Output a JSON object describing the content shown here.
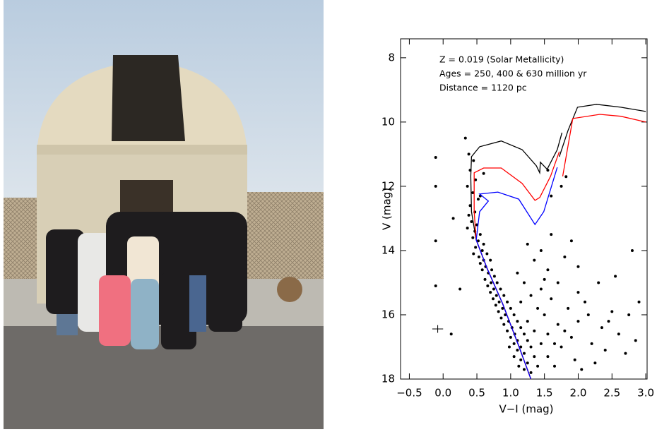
{
  "chart_data": {
    "type": "scatter",
    "annotations": [
      "Z = 0.019 (Solar Metallicity)",
      "Ages = 250, 400 & 630 million yr",
      "Distance = 1120 pc"
    ],
    "xlabel": "V−I (mag)",
    "ylabel": "V (mag)",
    "xlim": [
      -0.63,
      3.02
    ],
    "ylim": [
      18,
      7.41
    ],
    "xticks": [
      {
        "value": -0.5,
        "label": "−0.5"
      },
      {
        "value": 0,
        "label": "0.0"
      },
      0.5,
      {
        "value": 1,
        "label": "1.0"
      },
      1.5,
      {
        "value": 2,
        "label": "2.0"
      },
      2.5,
      {
        "value": 3,
        "label": "3.0"
      }
    ],
    "yticks": [
      8,
      10,
      12,
      14,
      16,
      18
    ],
    "series": [
      {
        "type": "scatter",
        "color": "#000000",
        "x": [
          0.33,
          0.38,
          0.45,
          0.4,
          0.48,
          0.36,
          0.44,
          0.52,
          0.4,
          0.47,
          0.38,
          0.55,
          0.6,
          0.42,
          0.5,
          0.36,
          0.47,
          0.55,
          0.44,
          0.52,
          0.6,
          0.48,
          0.58,
          0.45,
          0.65,
          0.53,
          0.6,
          0.7,
          0.55,
          0.63,
          0.72,
          0.58,
          0.67,
          0.76,
          0.62,
          0.71,
          0.8,
          0.66,
          0.75,
          0.85,
          0.7,
          0.79,
          0.9,
          0.74,
          0.83,
          0.95,
          0.78,
          0.88,
          1.0,
          0.82,
          0.92,
          1.05,
          0.86,
          0.97,
          1.1,
          0.9,
          1.02,
          1.15,
          0.95,
          1.06,
          1.2,
          1.0,
          1.1,
          1.25,
          1.05,
          1.15,
          1.3,
          1.1,
          1.2,
          1.35,
          1.15,
          1.25,
          1.4,
          1.2,
          1.3,
          1.5,
          1.6,
          1.45,
          1.7,
          1.85,
          2.0,
          2.1,
          1.9,
          2.2,
          2.35,
          2.5,
          2.6,
          2.7,
          2.4,
          1.75,
          1.55,
          1.65,
          1.95,
          2.05,
          2.25,
          1.4,
          1.3,
          1.2,
          1.1,
          1.35,
          1.55,
          1.8,
          2.0,
          2.3,
          2.55,
          2.8,
          2.9,
          2.75,
          2.85,
          1.25,
          1.45,
          1.6,
          1.9,
          1.75,
          1.82,
          1.55,
          1.6,
          0.12,
          0.15,
          0.25,
          1.15,
          1.25,
          1.35,
          1.45,
          1.55,
          1.65,
          1.8,
          1.05,
          1.12,
          0.98,
          2.15,
          2.45,
          1.7,
          1.5,
          2.0,
          -0.11,
          -0.11,
          -0.11,
          -0.11
        ],
        "y": [
          10.5,
          11.0,
          11.2,
          11.5,
          11.8,
          12.0,
          12.2,
          12.4,
          12.6,
          12.8,
          12.9,
          12.3,
          11.6,
          13.1,
          13.2,
          13.3,
          13.4,
          13.5,
          13.6,
          13.7,
          13.8,
          13.9,
          14.0,
          14.1,
          14.1,
          14.2,
          14.3,
          14.3,
          14.4,
          14.5,
          14.6,
          14.6,
          14.7,
          14.8,
          14.9,
          15.0,
          15.0,
          15.1,
          15.2,
          15.2,
          15.3,
          15.4,
          15.4,
          15.5,
          15.6,
          15.6,
          15.7,
          15.8,
          15.8,
          15.9,
          16.0,
          16.0,
          16.1,
          16.2,
          16.2,
          16.3,
          16.4,
          16.4,
          16.5,
          16.6,
          16.6,
          16.7,
          16.8,
          16.8,
          16.9,
          17.0,
          17.0,
          17.1,
          17.2,
          17.3,
          17.4,
          17.5,
          17.6,
          17.7,
          17.8,
          16.0,
          15.5,
          15.2,
          16.3,
          15.8,
          16.2,
          15.6,
          16.7,
          16.9,
          16.4,
          15.9,
          16.6,
          17.2,
          17.1,
          17.0,
          17.3,
          17.6,
          17.4,
          17.7,
          17.5,
          15.8,
          15.4,
          15.0,
          14.7,
          14.3,
          14.6,
          14.2,
          14.5,
          15.0,
          14.8,
          14.0,
          15.6,
          16.0,
          16.8,
          13.8,
          14.0,
          13.5,
          13.7,
          12.0,
          11.7,
          11.5,
          12.3,
          16.6,
          13.0,
          15.2,
          15.6,
          16.2,
          16.5,
          16.9,
          16.6,
          16.9,
          16.5,
          17.3,
          17.6,
          17.0,
          16.0,
          16.2,
          15.0,
          14.9,
          15.3,
          11.1,
          12.0,
          13.7,
          15.1
        ]
      },
      {
        "type": "line",
        "color": "#000000",
        "x": [
          1.3,
          1.12,
          0.88,
          0.65,
          0.49,
          0.42,
          0.41,
          0.42,
          0.54,
          0.86,
          1.17,
          1.38,
          1.43,
          1.44,
          1.54,
          1.69,
          1.76,
          null,
          1.72,
          1.85,
          1.99,
          2.27,
          2.63,
          3.0
        ],
        "y": [
          18.0,
          16.97,
          15.65,
          14.55,
          13.67,
          12.79,
          11.69,
          11.08,
          10.77,
          10.59,
          10.86,
          11.36,
          11.58,
          11.25,
          11.47,
          10.86,
          10.33,
          null,
          11.08,
          10.26,
          9.54,
          9.45,
          9.54,
          9.67
        ]
      },
      {
        "type": "line",
        "color": "#ff0000",
        "x": [
          1.3,
          1.12,
          0.88,
          0.65,
          0.49,
          0.46,
          0.46,
          0.6,
          0.86,
          1.17,
          1.36,
          1.43,
          1.59,
          1.72,
          null,
          1.77,
          1.92,
          2.32,
          2.63,
          3.0
        ],
        "y": [
          18.0,
          16.97,
          15.65,
          14.55,
          13.67,
          12.79,
          11.58,
          11.43,
          11.43,
          11.91,
          12.44,
          12.35,
          11.69,
          10.92,
          null,
          11.69,
          9.89,
          9.76,
          9.82,
          10.0
        ]
      },
      {
        "type": "line",
        "color": "#0000ff",
        "x": [
          1.3,
          1.12,
          0.88,
          0.65,
          0.49,
          0.54,
          0.67,
          0.54,
          0.81,
          1.12,
          1.36,
          1.49,
          1.69
        ],
        "y": [
          18.0,
          16.97,
          15.65,
          14.55,
          13.67,
          12.79,
          12.46,
          12.24,
          12.18,
          12.4,
          13.19,
          12.79,
          11.41
        ]
      }
    ],
    "error_bar": {
      "x": -0.08,
      "y": 16.44,
      "xerr": 0.08,
      "yerr": 0.12
    }
  }
}
